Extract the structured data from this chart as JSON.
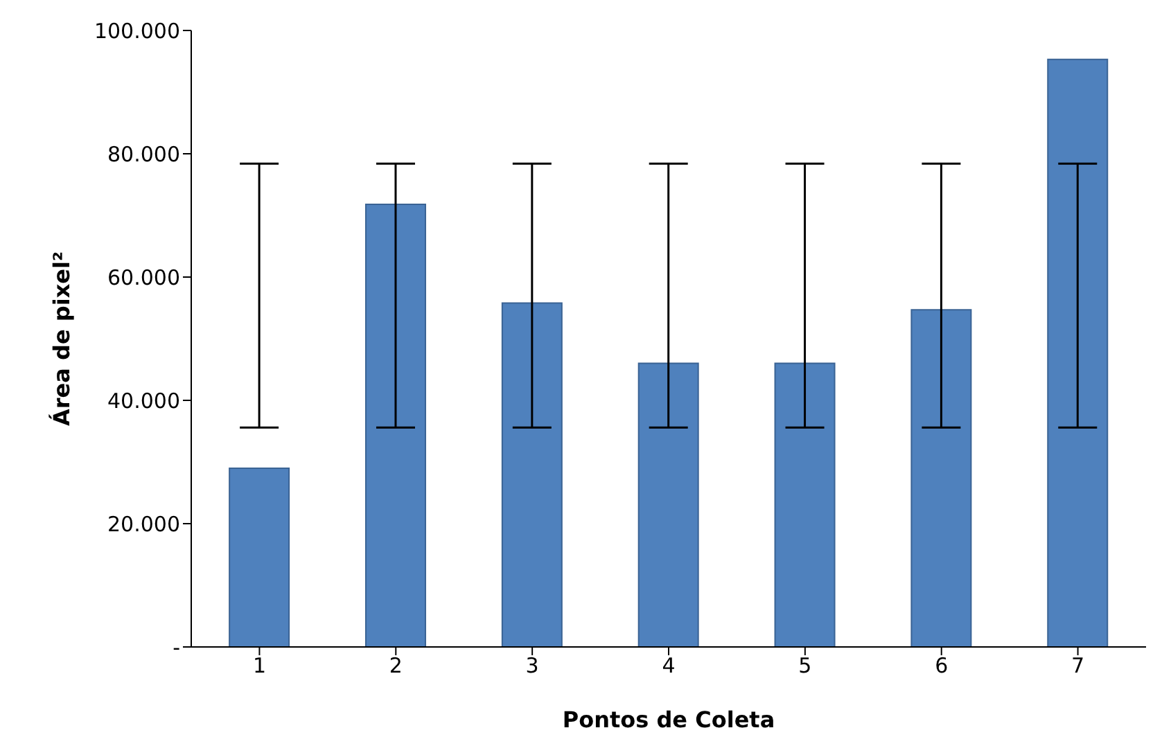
{
  "chart_data": {
    "type": "bar",
    "xlabel": "Pontos de Coleta",
    "ylabel": "Área de pixel²",
    "categories": [
      "1",
      "2",
      "3",
      "4",
      "5",
      "6",
      "7"
    ],
    "values": [
      29000,
      71800,
      55800,
      46000,
      46000,
      54700,
      95300
    ],
    "errors": [
      [
        35600,
        78400
      ],
      [
        35600,
        78400
      ],
      [
        35600,
        78400
      ],
      [
        35600,
        78400
      ],
      [
        35600,
        78400
      ],
      [
        35600,
        78400
      ],
      [
        35600,
        78400
      ]
    ],
    "color": "#4f81bd",
    "ylim": [
      0,
      100000
    ],
    "yticks": [
      {
        "value": 0,
        "label": "-"
      },
      {
        "value": 20000,
        "label": "20.000"
      },
      {
        "value": 40000,
        "label": "40.000"
      },
      {
        "value": 60000,
        "label": "60.000"
      },
      {
        "value": 80000,
        "label": "80.000"
      },
      {
        "value": 100000,
        "label": "100.000"
      }
    ],
    "grid": false,
    "legend": false
  }
}
